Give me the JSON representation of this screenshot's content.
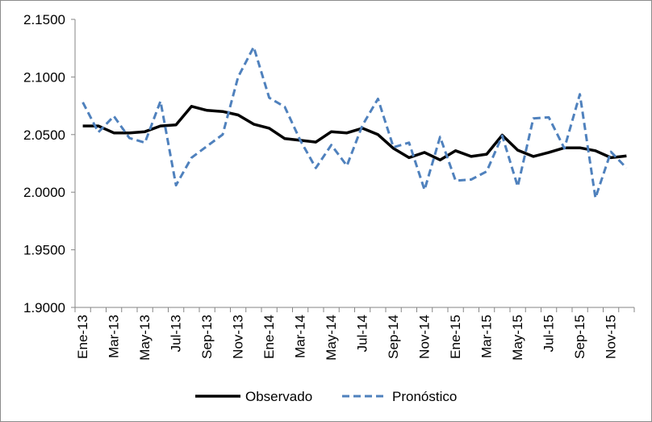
{
  "chart_data": {
    "type": "line",
    "title": "",
    "xlabel": "",
    "ylabel": "",
    "ylim": [
      1.9,
      2.15
    ],
    "yticks": [
      "1.9000",
      "1.9500",
      "2.0000",
      "2.0500",
      "2.1000",
      "2.1500"
    ],
    "x": [
      "Ene-13",
      "Feb-13",
      "Mar-13",
      "Abr-13",
      "May-13",
      "Jun-13",
      "Jul-13",
      "Ago-13",
      "Sep-13",
      "Oct-13",
      "Nov-13",
      "Dic-13",
      "Ene-14",
      "Feb-14",
      "Mar-14",
      "Abr-14",
      "May-14",
      "Jun-14",
      "Jul-14",
      "Ago-14",
      "Sep-14",
      "Oct-14",
      "Nov-14",
      "Dic-14",
      "Ene-15",
      "Feb-15",
      "Mar-15",
      "Abr-15",
      "May-15",
      "Jun-15",
      "Jul-15",
      "Ago-15",
      "Sep-15",
      "Oct-15",
      "Nov-15",
      "Dic-15"
    ],
    "x_tick_labels": [
      "Ene-13",
      "Mar-13",
      "May-13",
      "Jul-13",
      "Sep-13",
      "Nov-13",
      "Ene-14",
      "Mar-14",
      "May-14",
      "Jul-14",
      "Sep-14",
      "Nov-14",
      "Ene-15",
      "Mar-15",
      "May-15",
      "Jul-15",
      "Sep-15",
      "Nov-15"
    ],
    "grid": false,
    "legend_position": "bottom",
    "series": [
      {
        "name": "Observado",
        "color": "#000000",
        "style": "solid",
        "values": [
          2.0575,
          2.0575,
          2.0515,
          2.0515,
          2.0525,
          2.0575,
          2.0585,
          2.0745,
          2.071,
          2.07,
          2.067,
          2.059,
          2.0555,
          2.0465,
          2.045,
          2.0435,
          2.0525,
          2.0515,
          2.0555,
          2.05,
          2.038,
          2.03,
          2.0345,
          2.028,
          2.036,
          2.031,
          2.033,
          2.0495,
          2.0365,
          2.031,
          2.0345,
          2.0385,
          2.0385,
          2.036,
          2.03,
          2.0315
        ]
      },
      {
        "name": "Pronóstico",
        "color": "#4f81bd",
        "style": "dashed",
        "values": [
          2.078,
          2.052,
          2.066,
          2.047,
          2.043,
          2.079,
          2.006,
          2.03,
          2.04,
          2.05,
          2.1,
          2.126,
          2.082,
          2.074,
          2.045,
          2.021,
          2.041,
          2.023,
          2.058,
          2.081,
          2.039,
          2.043,
          2.002,
          2.048,
          2.01,
          2.011,
          2.018,
          2.049,
          2.005,
          2.064,
          2.065,
          2.038,
          2.085,
          1.995,
          2.035,
          2.021
        ]
      }
    ]
  }
}
